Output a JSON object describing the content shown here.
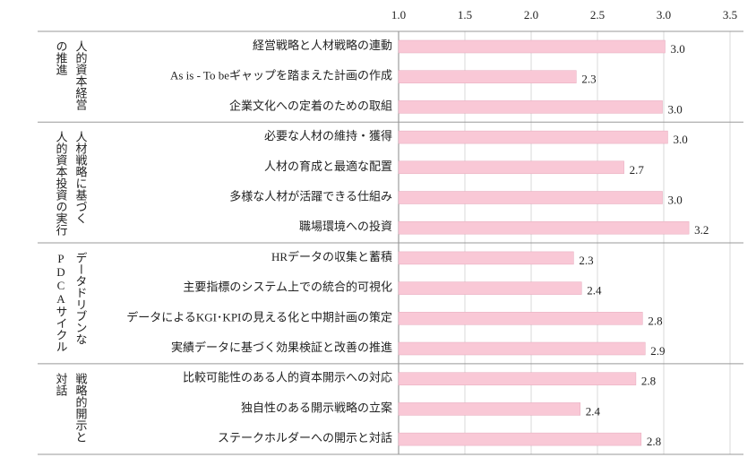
{
  "chart_data": {
    "type": "bar",
    "orientation": "horizontal",
    "categories": [
      "経営戦略と人材戦略の連動",
      "As is - To beギャップを踏まえた計画の作成",
      "企業文化への定着のための取組",
      "必要な人材の維持・獲得",
      "人材の育成と最適な配置",
      "多様な人材が活躍できる仕組み",
      "職場環境への投資",
      "HRデータの収集と蓄積",
      "主要指標のシステム上での統合的可視化",
      "データによるKGI･KPIの見える化と中期計画の策定",
      "実績データに基づく効果検証と改善の推進",
      "比較可能性のある人的資本開示への対応",
      "独自性のある開示戦略の立案",
      "ステークホルダーへの開示と対話"
    ],
    "values": [
      3.01,
      2.34,
      2.99,
      3.03,
      2.7,
      2.99,
      3.19,
      2.32,
      2.38,
      2.84,
      2.86,
      2.79,
      2.37,
      2.83
    ],
    "value_labels": [
      "3.0",
      "2.3",
      "3.0",
      "3.0",
      "2.7",
      "3.0",
      "3.2",
      "2.3",
      "2.4",
      "2.8",
      "2.9",
      "2.8",
      "2.4",
      "2.8"
    ],
    "groups": [
      {
        "lines": [
          "人的資本経営",
          "の推進"
        ],
        "size": 3
      },
      {
        "lines": [
          "人材戦略に基づく",
          "人的資本投資の実行"
        ],
        "size": 4
      },
      {
        "lines": [
          "データドリブンな",
          "PDCAサイクル"
        ],
        "size": 4
      },
      {
        "lines": [
          "戦略的開示と",
          "対話"
        ],
        "size": 3
      }
    ],
    "color": "#f9c8d6",
    "xlim": [
      1,
      3.5
    ],
    "xticks": [
      {
        "value": 1,
        "label": "1.0"
      },
      1.5,
      {
        "value": 2,
        "label": "2.0"
      },
      2.5,
      {
        "value": 3,
        "label": "3.0"
      },
      3.5
    ],
    "grid": true
  }
}
